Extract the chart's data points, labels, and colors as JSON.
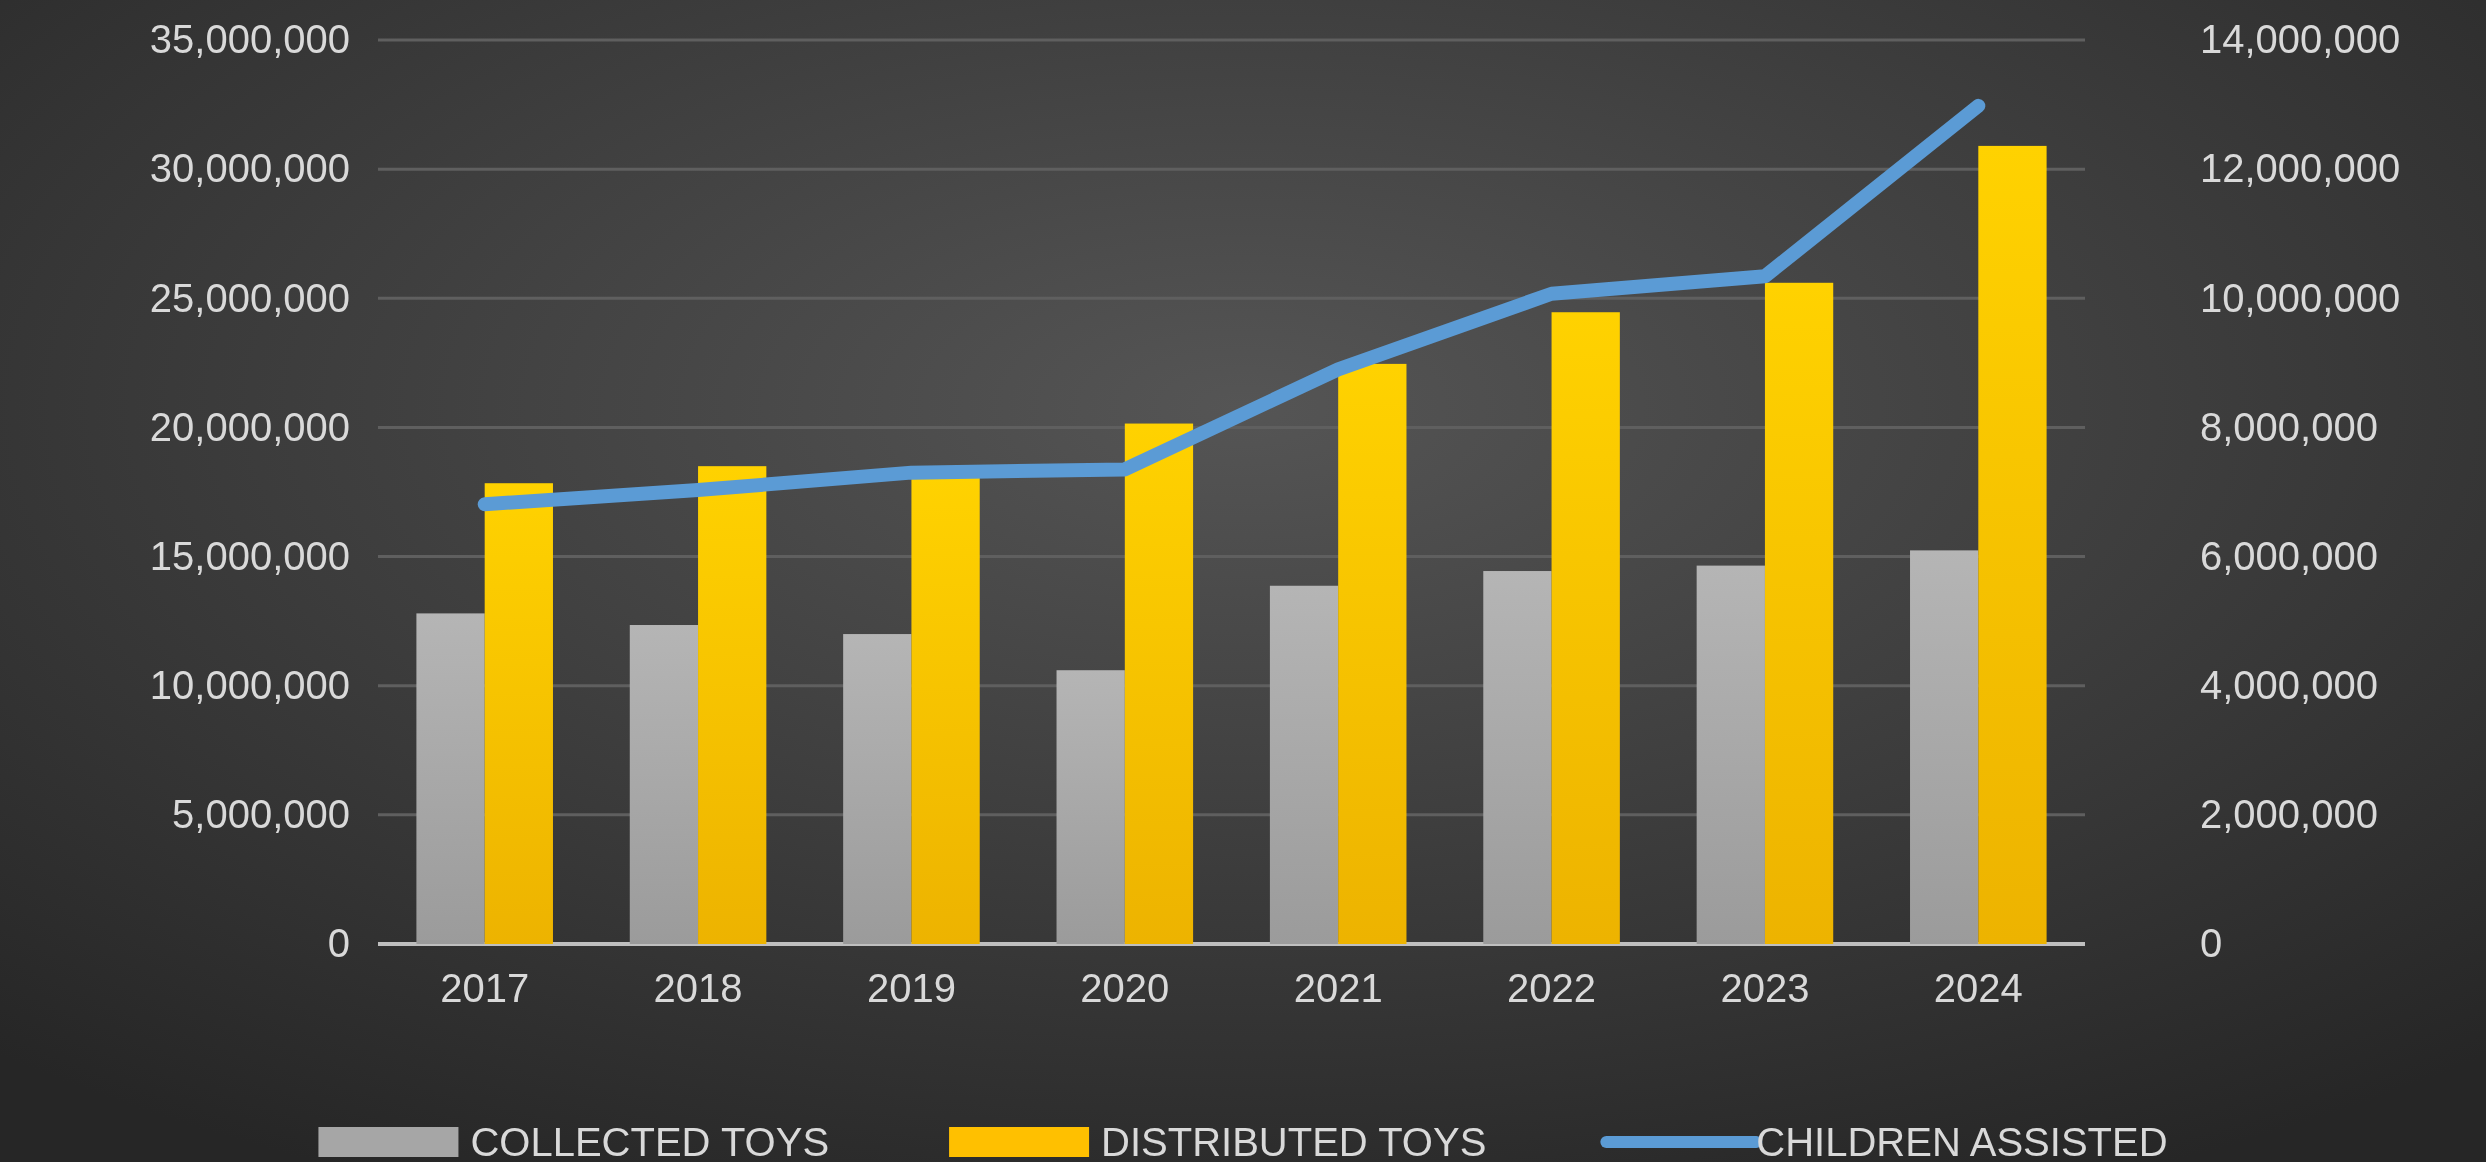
{
  "chart_data": {
    "type": "bar",
    "categories": [
      "2017",
      "2018",
      "2019",
      "2020",
      "2021",
      "2022",
      "2023",
      "2024"
    ],
    "series": [
      {
        "name": "COLLECTED TOYS",
        "color": "#a6a6a6",
        "values": [
          12800000,
          12350000,
          12000000,
          10600000,
          13870000,
          14440000,
          14650000,
          15240000
        ]
      },
      {
        "name": "DISTRIBUTED TOYS",
        "color": "#ffc000",
        "values": [
          17840000,
          18500000,
          18100000,
          20150000,
          22460000,
          24460000,
          25600000,
          30900000
        ]
      },
      {
        "name": "CHILDREN ASSISTED",
        "color": "#5b9bd5",
        "type": "line",
        "axis": "y2",
        "values": [
          6810000,
          7030000,
          7300000,
          7350000,
          8900000,
          10070000,
          10340000,
          12980000
        ]
      }
    ],
    "ylim": [
      0,
      35000000
    ],
    "yticks": [
      {
        "value": 0,
        "label": "0"
      },
      {
        "value": 5000000,
        "label": "5,000,000"
      },
      {
        "value": 10000000,
        "label": "10,000,000"
      },
      {
        "value": 15000000,
        "label": "15,000,000"
      },
      {
        "value": 20000000,
        "label": "20,000,000"
      },
      {
        "value": 25000000,
        "label": "25,000,000"
      },
      {
        "value": 30000000,
        "label": "30,000,000"
      },
      {
        "value": 35000000,
        "label": "35,000,000"
      }
    ],
    "y2lim": [
      0,
      14000000
    ],
    "y2ticks": [
      {
        "value": 0,
        "label": "0"
      },
      {
        "value": 2000000,
        "label": "2,000,000"
      },
      {
        "value": 4000000,
        "label": "4,000,000"
      },
      {
        "value": 6000000,
        "label": "6,000,000"
      },
      {
        "value": 8000000,
        "label": "8,000,000"
      },
      {
        "value": 10000000,
        "label": "10,000,000"
      },
      {
        "value": 12000000,
        "label": "12,000,000"
      },
      {
        "value": 14000000,
        "label": "14,000,000"
      }
    ],
    "grid": "y",
    "legend": "bottom",
    "marker": "none",
    "line_style": "solid"
  }
}
